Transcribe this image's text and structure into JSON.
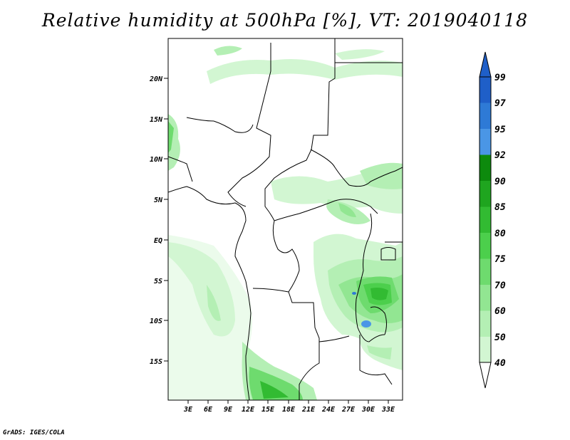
{
  "title": "Relative humidity at 500hPa [%], VT: 2019040118",
  "credit": "GrADS: IGES/COLA",
  "lat_labels": [
    "20N",
    "15N",
    "10N",
    "5N",
    "EQ",
    "5S",
    "10S",
    "15S"
  ],
  "lon_labels": [
    "3E",
    "6E",
    "9E",
    "12E",
    "15E",
    "18E",
    "21E",
    "24E",
    "27E",
    "30E",
    "33E"
  ],
  "colorbar": {
    "levels": [
      "99",
      "97",
      "95",
      "92",
      "90",
      "85",
      "80",
      "75",
      "70",
      "60",
      "50",
      "40"
    ],
    "colors": [
      "#1f5fc8",
      "#2e7ad6",
      "#4a96e6",
      "#0d8a0d",
      "#1fa51f",
      "#32bb32",
      "#4ccf4c",
      "#6edb6e",
      "#92e692",
      "#b4efb4",
      "#d2f6d2",
      "#ebfbeb"
    ]
  }
}
